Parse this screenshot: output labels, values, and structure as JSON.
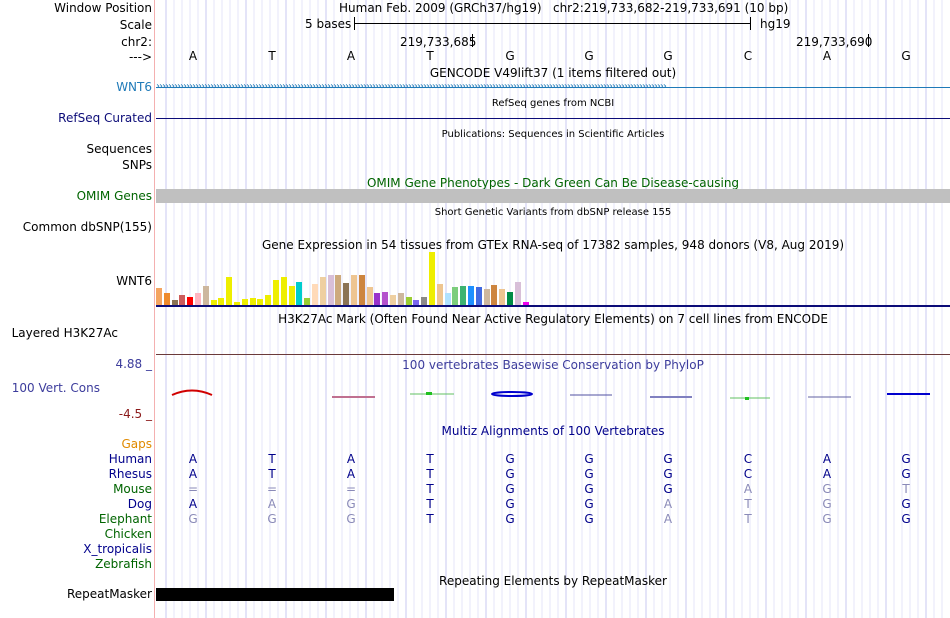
{
  "header": {
    "window_position_label": "Window Position",
    "assembly": "Human Feb. 2009 (GRCh37/hg19)",
    "position": "chr2:219,733,682-219,733,691 (10 bp)",
    "scale_label": "Scale",
    "scale_text": "5 bases",
    "scale_db": "hg19",
    "chrom_label": "chr2:",
    "coord1": "219,733,685",
    "coord2": "219,733,690",
    "strand_label": "--->",
    "bases": [
      "A",
      "T",
      "A",
      "T",
      "G",
      "G",
      "G",
      "C",
      "A",
      "G"
    ]
  },
  "tracks": {
    "gencode": {
      "title": "GENCODE V49lift37 (1 items filtered out)",
      "label": "WNT6",
      "color": "#1f7ab8"
    },
    "refseq": {
      "title": "RefSeq genes from NCBI",
      "label": "RefSeq Curated"
    },
    "publications": {
      "title": "Publications: Sequences in Scientific Articles",
      "label1": "Sequences",
      "label2": "SNPs"
    },
    "omim": {
      "title": "OMIM Gene Phenotypes - Dark Green Can Be Disease-causing",
      "label": "OMIM Genes"
    },
    "dbsnp": {
      "title": "Short Genetic Variants from dbSNP release 155",
      "label": "Common dbSNP(155)"
    },
    "gtex": {
      "title": "Gene Expression in 54 tissues from GTEx RNA-seq of 17382 samples, 948 donors (V8, Aug 2019)",
      "label": "WNT6"
    },
    "h3k27ac": {
      "title": "H3K27Ac Mark (Often Found Near Active Regulatory Elements) on 7 cell lines from ENCODE",
      "label": "Layered H3K27Ac"
    },
    "phylop": {
      "title": "100 vertebrates Basewise Conservation by PhyloP",
      "label": "100 Vert. Cons",
      "max": "4.88 _",
      "min": "-4.5 _"
    },
    "multiz": {
      "title": "Multiz Alignments of 100 Vertebrates",
      "gaps_label": "Gaps"
    },
    "repeatmasker": {
      "title": "Repeating Elements by RepeatMasker",
      "label": "RepeatMasker"
    }
  },
  "gtex_bars": [
    {
      "v": 0.33,
      "c": "#f4a460"
    },
    {
      "v": 0.22,
      "c": "#ee8a2c"
    },
    {
      "v": 0.1,
      "c": "#8b7355"
    },
    {
      "v": 0.18,
      "c": "#cd5c5c"
    },
    {
      "v": 0.16,
      "c": "#ff0000"
    },
    {
      "v": 0.22,
      "c": "#ffb6c1"
    },
    {
      "v": 0.36,
      "c": "#cdb79e"
    },
    {
      "v": 0.1,
      "c": "#eeee00"
    },
    {
      "v": 0.14,
      "c": "#eeee00"
    },
    {
      "v": 0.52,
      "c": "#eeee00"
    },
    {
      "v": 0.06,
      "c": "#eeee00"
    },
    {
      "v": 0.12,
      "c": "#eeee00"
    },
    {
      "v": 0.14,
      "c": "#eeee00"
    },
    {
      "v": 0.12,
      "c": "#eeee00"
    },
    {
      "v": 0.18,
      "c": "#eeee00"
    },
    {
      "v": 0.48,
      "c": "#eeee00"
    },
    {
      "v": 0.52,
      "c": "#eeee00"
    },
    {
      "v": 0.36,
      "c": "#eeee00"
    },
    {
      "v": 0.44,
      "c": "#00cdcd"
    },
    {
      "v": 0.14,
      "c": "#9acd32"
    },
    {
      "v": 0.4,
      "c": "#ffdab9"
    },
    {
      "v": 0.52,
      "c": "#eecfa1"
    },
    {
      "v": 0.56,
      "c": "#d8bfd8"
    },
    {
      "v": 0.56,
      "c": "#cdaa7d"
    },
    {
      "v": 0.42,
      "c": "#8b7355"
    },
    {
      "v": 0.56,
      "c": "#eec591"
    },
    {
      "v": 0.56,
      "c": "#cd853f"
    },
    {
      "v": 0.34,
      "c": "#eec591"
    },
    {
      "v": 0.22,
      "c": "#9932cc"
    },
    {
      "v": 0.24,
      "c": "#b452cd"
    },
    {
      "v": 0.18,
      "c": "#eecfa1"
    },
    {
      "v": 0.22,
      "c": "#cdb79e"
    },
    {
      "v": 0.16,
      "c": "#9acd32"
    },
    {
      "v": 0.1,
      "c": "#7a67ee"
    },
    {
      "v": 0.16,
      "c": "#8b8989"
    },
    {
      "v": 1.0,
      "c": "#eeee00"
    },
    {
      "v": 0.4,
      "c": "#eec591"
    },
    {
      "v": 0.22,
      "c": "#b0e2ff"
    },
    {
      "v": 0.34,
      "c": "#7ccd7c"
    },
    {
      "v": 0.36,
      "c": "#3cb371"
    },
    {
      "v": 0.36,
      "c": "#1e90ff"
    },
    {
      "v": 0.34,
      "c": "#4169e1"
    },
    {
      "v": 0.3,
      "c": "#cdb79e"
    },
    {
      "v": 0.38,
      "c": "#cd853f"
    },
    {
      "v": 0.3,
      "c": "#eec591"
    },
    {
      "v": 0.24,
      "c": "#008b45"
    },
    {
      "v": 0.44,
      "c": "#d8bfd8"
    },
    {
      "v": 0.06,
      "c": "#ee00ee"
    }
  ],
  "multiz": [
    {
      "species": "Human",
      "color": "#00008b",
      "bases": [
        "A",
        "T",
        "A",
        "T",
        "G",
        "G",
        "G",
        "C",
        "A",
        "G"
      ],
      "dim": []
    },
    {
      "species": "Rhesus",
      "color": "#00008b",
      "bases": [
        "A",
        "T",
        "A",
        "T",
        "G",
        "G",
        "G",
        "C",
        "A",
        "G"
      ],
      "dim": []
    },
    {
      "species": "Mouse",
      "color": "#006400",
      "bases": [
        "=",
        "=",
        "=",
        "T",
        "G",
        "G",
        "G",
        "A",
        "G",
        "T"
      ],
      "dim": [
        0,
        1,
        2,
        7,
        8,
        9
      ]
    },
    {
      "species": "Dog",
      "color": "#00008b",
      "bases": [
        "A",
        "A",
        "G",
        "T",
        "G",
        "G",
        "A",
        "T",
        "G",
        "G"
      ],
      "dim": [
        1,
        2,
        6,
        7,
        8
      ]
    },
    {
      "species": "Elephant",
      "color": "#006400",
      "bases": [
        "G",
        "G",
        "G",
        "T",
        "G",
        "G",
        "A",
        "T",
        "G",
        "G"
      ],
      "dim": [
        0,
        1,
        2,
        6,
        7,
        8
      ]
    },
    {
      "species": "Chicken",
      "color": "#006400",
      "bases": [],
      "dim": []
    },
    {
      "species": "X_tropicalis",
      "color": "#00008b",
      "bases": [],
      "dim": []
    },
    {
      "species": "Zebrafish",
      "color": "#006400",
      "bases": [],
      "dim": []
    }
  ]
}
